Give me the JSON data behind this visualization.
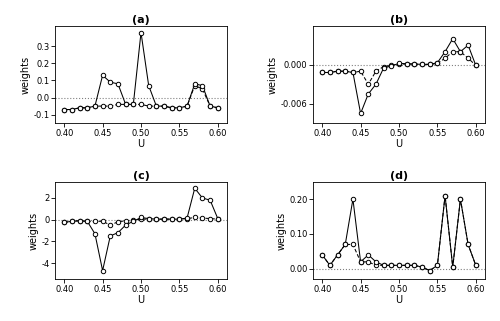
{
  "U_values": [
    0.4,
    0.41,
    0.42,
    0.43,
    0.44,
    0.45,
    0.46,
    0.47,
    0.48,
    0.49,
    0.5,
    0.51,
    0.52,
    0.53,
    0.54,
    0.55,
    0.56,
    0.57,
    0.58,
    0.59,
    0.6
  ],
  "a_exact": [
    -0.07,
    -0.07,
    -0.06,
    -0.06,
    -0.05,
    0.13,
    0.09,
    0.08,
    -0.04,
    -0.04,
    0.38,
    0.07,
    -0.05,
    -0.05,
    -0.06,
    -0.06,
    -0.05,
    0.08,
    0.07,
    -0.05,
    -0.06
  ],
  "a_asymp": [
    -0.07,
    -0.07,
    -0.06,
    -0.06,
    -0.05,
    -0.05,
    -0.05,
    -0.04,
    -0.04,
    -0.04,
    -0.04,
    -0.05,
    -0.05,
    -0.05,
    -0.06,
    -0.06,
    -0.05,
    0.07,
    0.05,
    -0.05,
    -0.06
  ],
  "b_exact": [
    -0.0012,
    -0.0012,
    -0.001,
    -0.001,
    -0.0012,
    -0.0075,
    -0.0045,
    -0.003,
    -0.0005,
    -0.0002,
    0.0002,
    0.00015,
    0.0001,
    5e-05,
    5e-05,
    0.0003,
    0.002,
    0.004,
    0.002,
    0.003,
    -0.0001
  ],
  "b_asymp": [
    -0.0012,
    -0.0012,
    -0.001,
    -0.001,
    -0.0012,
    -0.001,
    -0.003,
    -0.001,
    -0.0003,
    -0.0001,
    0.0001,
    0.0001,
    0.0001,
    5e-05,
    5e-05,
    0.0002,
    0.001,
    0.002,
    0.002,
    0.001,
    -0.0001
  ],
  "c_exact": [
    -0.25,
    -0.15,
    -0.1,
    -0.15,
    -1.3,
    -4.7,
    -1.5,
    -1.2,
    -0.5,
    -0.15,
    0.2,
    0.1,
    0.05,
    0.05,
    0.05,
    0.05,
    0.15,
    2.9,
    2.0,
    1.8,
    0.1
  ],
  "c_asymp": [
    -0.25,
    -0.15,
    -0.1,
    -0.15,
    -0.15,
    -0.15,
    -0.5,
    -0.2,
    -0.1,
    -0.05,
    0.05,
    0.05,
    0.05,
    0.05,
    0.05,
    0.05,
    0.1,
    0.2,
    0.15,
    0.1,
    0.05
  ],
  "d_exact": [
    0.04,
    0.01,
    0.04,
    0.07,
    0.2,
    0.02,
    0.04,
    0.02,
    0.01,
    0.01,
    0.01,
    0.01,
    0.01,
    0.005,
    -0.005,
    0.01,
    0.21,
    0.005,
    0.2,
    0.07,
    0.01
  ],
  "d_asymp": [
    0.04,
    0.01,
    0.04,
    0.07,
    0.07,
    0.02,
    0.02,
    0.01,
    0.01,
    0.01,
    0.01,
    0.01,
    0.01,
    0.005,
    -0.005,
    0.01,
    0.21,
    0.005,
    0.2,
    0.07,
    0.01
  ],
  "titles": [
    "(a)",
    "(b)",
    "(c)",
    "(d)"
  ],
  "xlabel": "U",
  "ylabel": "weights",
  "a_ylim": [
    -0.15,
    0.42
  ],
  "b_ylim": [
    -0.009,
    0.006
  ],
  "c_ylim": [
    -5.5,
    3.5
  ],
  "d_ylim": [
    -0.03,
    0.25
  ],
  "a_yticks": [
    -0.1,
    0.0,
    0.1,
    0.2,
    0.3
  ],
  "b_yticks": [
    -0.006,
    0.0
  ],
  "c_yticks": [
    -4,
    -2,
    0,
    2
  ],
  "d_yticks": [
    0.0,
    0.1,
    0.2
  ],
  "xlim": [
    0.388,
    0.612
  ],
  "xticks": [
    0.4,
    0.45,
    0.5,
    0.55,
    0.6
  ],
  "line_color": "#000000",
  "dot_facecolor": "#ffffff",
  "dot_edgecolor": "#000000",
  "hline_color": "#808080",
  "bg_color": "#ffffff"
}
